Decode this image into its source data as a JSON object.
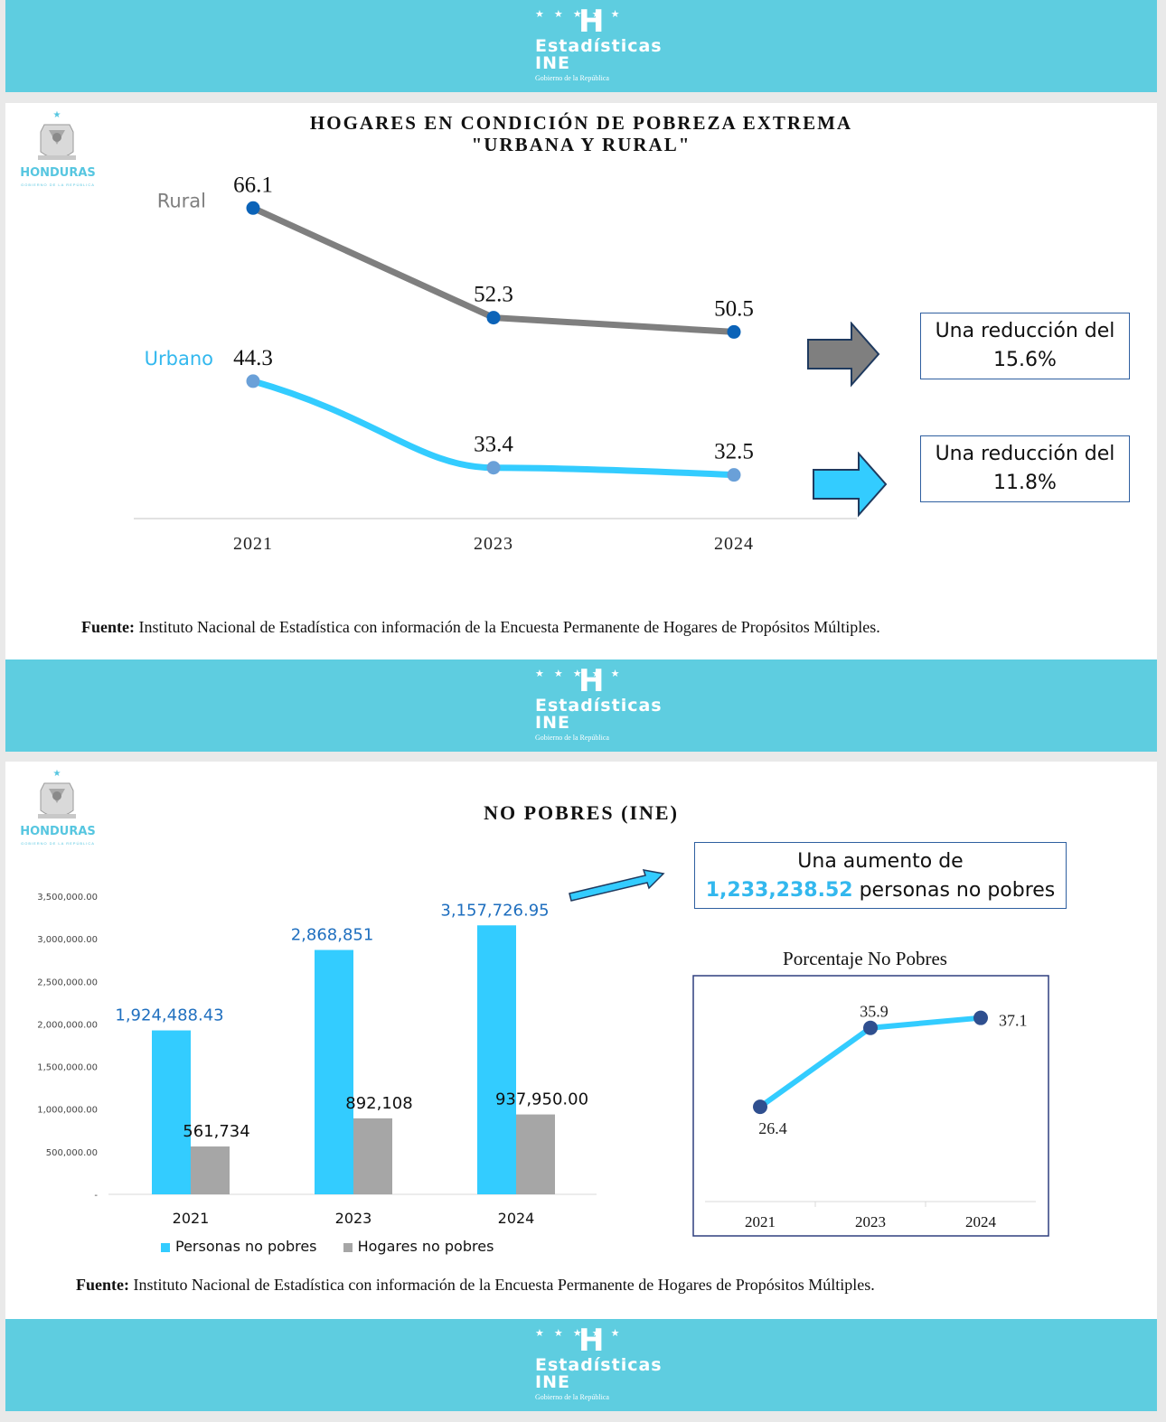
{
  "brand": {
    "stars": "★ ★ ★ ★ ★",
    "h": "H",
    "name_line1": "Estadísticas",
    "name_line2": "INE",
    "gov": "Gobierno de la República"
  },
  "emblem": {
    "name": "HONDURAS",
    "sub": "GOBIERNO DE LA REPÚBLICA"
  },
  "colors": {
    "band": "#5ecde0",
    "rural": "#7f7f7f",
    "urban": "#33ccff",
    "marker_dark": "#0b63b8",
    "personas": "#33ccff",
    "hogares": "#a6a6a6",
    "label_blue": "#1f6fbf",
    "pct_line": "#33ccff",
    "pct_marker": "#2f4f8f"
  },
  "panel1": {
    "title_line1": "HOGARES EN CONDICIÓN DE POBREZA EXTREMA",
    "title_line2": "\"URBANA Y RURAL\"",
    "box_rural": {
      "line1": "Una reducción del",
      "line2": "15.6%"
    },
    "box_urban": {
      "line1": "Una reducción del",
      "line2": "11.8%"
    },
    "fuente_label": "Fuente:",
    "fuente_text": " Instituto Nacional de Estadística con información de la Encuesta Permanente de Hogares de Propósitos Múltiples."
  },
  "panel2": {
    "title": "NO POBRES (INE)",
    "box_line1": "Una aumento de",
    "box_value": "1,233,238.52",
    "box_rest": " personas no pobres",
    "legend_personas": "Personas no pobres",
    "legend_hogares": "Hogares no pobres",
    "fuente_label": "Fuente:",
    "fuente_text": " Instituto Nacional de Estadística con información de la Encuesta Permanente de Hogares de Propósitos Múltiples."
  },
  "chart_data": [
    {
      "type": "line",
      "title": "HOGARES EN CONDICIÓN DE POBREZA EXTREMA \"URBANA Y RURAL\"",
      "categories": [
        "2021",
        "2023",
        "2024"
      ],
      "series": [
        {
          "name": "Rural",
          "values": [
            66.1,
            52.3,
            50.5
          ],
          "labels": [
            "66.1",
            "52.3",
            "50.5"
          ]
        },
        {
          "name": "Urbano",
          "values": [
            44.3,
            33.4,
            32.5
          ],
          "labels": [
            "44.3",
            "33.4",
            "32.5"
          ]
        }
      ],
      "ylim": [
        27,
        70
      ],
      "grid": false
    },
    {
      "type": "bar",
      "title": "NO POBRES (INE)",
      "categories": [
        "2021",
        "2023",
        "2024"
      ],
      "series": [
        {
          "name": "Personas no pobres",
          "values": [
            1924488.43,
            2868851,
            3157726.95
          ],
          "labels": [
            "1,924,488.43",
            "2,868,851",
            "3,157,726.95"
          ]
        },
        {
          "name": "Hogares no pobres",
          "values": [
            561734,
            892108,
            937950
          ],
          "labels": [
            "561,734",
            "892,108",
            "937,950.00"
          ]
        }
      ],
      "yticks": [
        "-",
        "500,000.00",
        "1,000,000.00",
        "1,500,000.00",
        "2,000,000.00",
        "2,500,000.00",
        "3,000,000.00",
        "3,500,000.00"
      ],
      "ylim": [
        0,
        3500000
      ],
      "legend": "bottom"
    },
    {
      "type": "line",
      "title": "Porcentaje No Pobres",
      "categories": [
        "2021",
        "2023",
        "2024"
      ],
      "values": [
        26.4,
        35.9,
        37.1
      ],
      "labels": [
        "26.4",
        "35.9",
        "37.1"
      ],
      "ylim": [
        15,
        40
      ]
    }
  ]
}
